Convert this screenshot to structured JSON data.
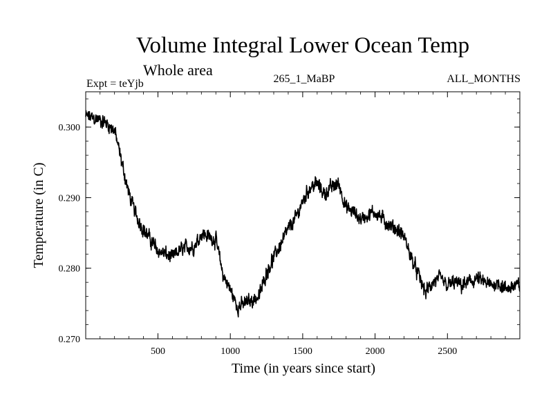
{
  "chart_data": {
    "type": "line",
    "title": "Volume Integral Lower Ocean Temp",
    "subtitle": "Whole area",
    "experiment_label": "Expt = teYjb",
    "run_label": "265_1_MaBP",
    "months_label": "ALL_MONTHS",
    "xlabel": "Time (in years since start)",
    "ylabel": "Temperature (in C)",
    "xlim": [
      1,
      3000
    ],
    "ylim": [
      0.27,
      0.305
    ],
    "xticks": [
      500,
      1000,
      1500,
      2000,
      2500
    ],
    "xtick_labels": [
      "500",
      "1000",
      "1500",
      "2000",
      "2500"
    ],
    "yticks": [
      0.27,
      0.28,
      0.29,
      0.3
    ],
    "ytick_labels": [
      "0.270",
      "0.280",
      "0.290",
      "0.300"
    ],
    "grid": false,
    "series": [
      {
        "name": "Volume Integral Lower Ocean Temp",
        "color": "#000000",
        "noise_amplitude": 0.0013,
        "trend_x": [
          1,
          100,
          150,
          200,
          250,
          300,
          350,
          400,
          450,
          500,
          550,
          600,
          650,
          700,
          750,
          800,
          850,
          900,
          950,
          1000,
          1050,
          1100,
          1150,
          1200,
          1250,
          1300,
          1350,
          1400,
          1450,
          1500,
          1550,
          1600,
          1650,
          1700,
          1750,
          1800,
          1850,
          1900,
          1950,
          2000,
          2050,
          2100,
          2150,
          2200,
          2250,
          2300,
          2350,
          2400,
          2450,
          2500,
          2550,
          2600,
          2650,
          2700,
          2750,
          2800,
          2850,
          2900,
          2950,
          3000
        ],
        "trend_y": [
          0.3015,
          0.301,
          0.3005,
          0.2995,
          0.295,
          0.2905,
          0.2875,
          0.2855,
          0.284,
          0.2825,
          0.282,
          0.2815,
          0.2825,
          0.283,
          0.283,
          0.285,
          0.2845,
          0.284,
          0.279,
          0.277,
          0.2745,
          0.275,
          0.2755,
          0.276,
          0.2795,
          0.2815,
          0.2835,
          0.2855,
          0.287,
          0.2895,
          0.2915,
          0.292,
          0.2905,
          0.2915,
          0.292,
          0.2885,
          0.288,
          0.287,
          0.2875,
          0.288,
          0.287,
          0.286,
          0.2855,
          0.2845,
          0.2815,
          0.279,
          0.2765,
          0.278,
          0.2785,
          0.2775,
          0.278,
          0.2775,
          0.278,
          0.2785,
          0.278,
          0.2775,
          0.278,
          0.277,
          0.2775,
          0.2775
        ]
      }
    ]
  }
}
